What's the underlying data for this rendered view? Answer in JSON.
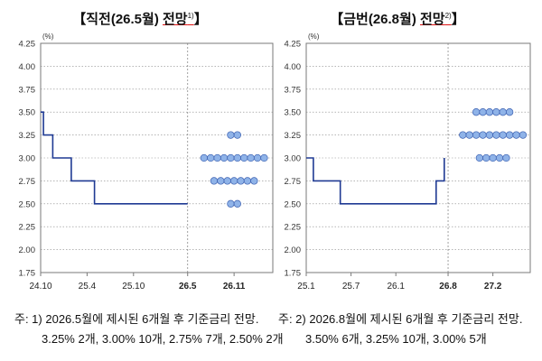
{
  "charts": [
    {
      "title_text": "【직전(26.5월) ",
      "title_tail": "전망",
      "title_sup": "1)",
      "title_end": "】",
      "note_line1": "주: 1) 2026.5월에 제시된 6개월 후 기준금리 전망.",
      "note_line2": "3.25% 2개, 3.00% 10개, 2.75% 7개, 2.50% 2개"
    },
    {
      "title_text": "【금번(26.8월) ",
      "title_tail": "전망",
      "title_sup": "2)",
      "title_end": "】",
      "note_line1": "주: 2) 2026.8월에 제시된 6개월 후 기준금리 전망.",
      "note_line2": "3.50% 6개, 3.25% 10개, 3.00% 5개"
    }
  ],
  "colors": {
    "line": "#1f3a93",
    "dot_fill": "#8fb3e8",
    "dot_stroke": "#3a5fb0",
    "grid": "#8a8a8a",
    "frame": "#7a7a7a"
  },
  "chart_data": [
    {
      "type": "step-line+dots",
      "ylabel": "(%)",
      "ylim": [
        1.75,
        4.25
      ],
      "yticks": [
        "4.25",
        "4.00",
        "3.75",
        "3.50",
        "3.25",
        "3.00",
        "2.75",
        "2.50",
        "2.25",
        "2.00",
        "1.75"
      ],
      "xticks": [
        {
          "label": "24.10",
          "pos": 0.0,
          "bold": false
        },
        {
          "label": "25.4",
          "pos": 0.5,
          "bold": false
        },
        {
          "label": "25.10",
          "pos": 1.0,
          "bold": false
        },
        {
          "label": "26.5",
          "pos": 1.583,
          "bold": true
        },
        {
          "label": "26.11",
          "pos": 2.083,
          "bold": true
        }
      ],
      "xrange": [
        0.0,
        2.5
      ],
      "forecast_start": 1.583,
      "rate_path": [
        {
          "x": 0.0,
          "y": 3.5
        },
        {
          "x": 0.03,
          "y": 3.5
        },
        {
          "x": 0.03,
          "y": 3.25
        },
        {
          "x": 0.13,
          "y": 3.25
        },
        {
          "x": 0.13,
          "y": 3.0
        },
        {
          "x": 0.33,
          "y": 3.0
        },
        {
          "x": 0.33,
          "y": 2.75
        },
        {
          "x": 0.58,
          "y": 2.75
        },
        {
          "x": 0.58,
          "y": 2.5
        },
        {
          "x": 1.583,
          "y": 2.5
        }
      ],
      "dot_plot": {
        "x": 2.083,
        "levels": [
          {
            "rate": 3.25,
            "count": 2
          },
          {
            "rate": 3.0,
            "count": 10
          },
          {
            "rate": 2.75,
            "count": 7
          },
          {
            "rate": 2.5,
            "count": 2
          }
        ]
      }
    },
    {
      "type": "step-line+dots",
      "ylabel": "(%)",
      "ylim": [
        1.75,
        4.25
      ],
      "yticks": [
        "4.25",
        "4.00",
        "3.75",
        "3.50",
        "3.25",
        "3.00",
        "2.75",
        "2.50",
        "2.25",
        "2.00",
        "1.75"
      ],
      "xticks": [
        {
          "label": "25.1",
          "pos": 0.0,
          "bold": false
        },
        {
          "label": "25.7",
          "pos": 0.5,
          "bold": false
        },
        {
          "label": "26.1",
          "pos": 1.0,
          "bold": false
        },
        {
          "label": "26.8",
          "pos": 1.583,
          "bold": true
        },
        {
          "label": "27.2",
          "pos": 2.083,
          "bold": true
        }
      ],
      "xrange": [
        0.0,
        2.5
      ],
      "forecast_start": 1.583,
      "rate_path": [
        {
          "x": 0.0,
          "y": 3.0
        },
        {
          "x": 0.08,
          "y": 3.0
        },
        {
          "x": 0.08,
          "y": 2.75
        },
        {
          "x": 0.38,
          "y": 2.75
        },
        {
          "x": 0.38,
          "y": 2.5
        },
        {
          "x": 1.45,
          "y": 2.5
        },
        {
          "x": 1.45,
          "y": 2.75
        },
        {
          "x": 1.54,
          "y": 2.75
        },
        {
          "x": 1.54,
          "y": 3.0
        }
      ],
      "dot_plot": {
        "x": 2.083,
        "levels": [
          {
            "rate": 3.5,
            "count": 6
          },
          {
            "rate": 3.25,
            "count": 10
          },
          {
            "rate": 3.0,
            "count": 5
          }
        ]
      }
    }
  ]
}
